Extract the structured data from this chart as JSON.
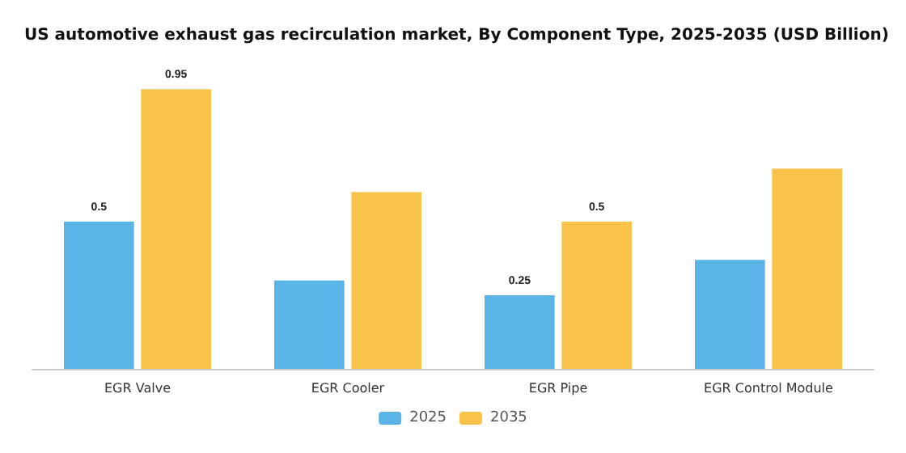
{
  "chart_data": {
    "type": "bar",
    "title": "US automotive exhaust gas recirculation market, By Component Type, 2025-2035 (USD Billion)",
    "categories": [
      "EGR Valve",
      "EGR Cooler",
      "EGR Pipe",
      "EGR Control Module"
    ],
    "series": [
      {
        "name": "2025",
        "color": "#5ab4e6",
        "values": [
          0.5,
          0.3,
          0.25,
          0.37
        ],
        "value_labels": [
          "0.5",
          null,
          "0.25",
          null
        ]
      },
      {
        "name": "2035",
        "color": "#f9c24a",
        "values": [
          0.95,
          0.6,
          0.5,
          0.68
        ],
        "value_labels": [
          "0.95",
          null,
          "0.5",
          null
        ]
      }
    ],
    "tick_labels": "x",
    "grid": false,
    "legend": "bottom"
  }
}
